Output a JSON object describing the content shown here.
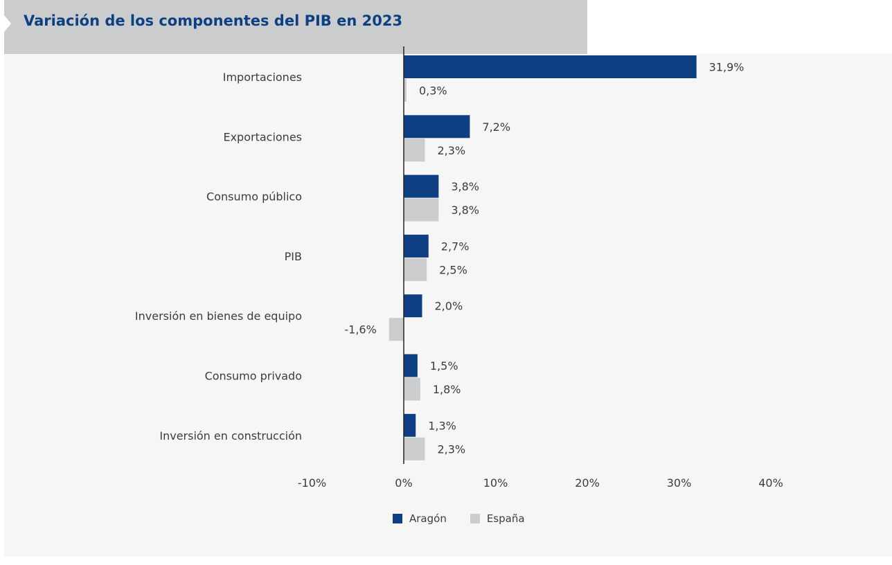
{
  "chart_data": {
    "type": "bar",
    "orientation": "horizontal",
    "title": "Variación de los componentes del PIB en 2023",
    "categories": [
      "Importaciones",
      "Exportaciones",
      "Consumo público",
      "PIB",
      "Inversión en bienes de equipo",
      "Consumo privado",
      "Inversión en construcción"
    ],
    "series": [
      {
        "name": "Aragón",
        "color": "#0e3f82",
        "values": [
          31.9,
          7.2,
          3.8,
          2.7,
          2.0,
          1.5,
          1.3
        ],
        "labels": [
          "31,9%",
          "7,2%",
          "3,8%",
          "2,7%",
          "2,0%",
          "1,5%",
          "1,3%"
        ]
      },
      {
        "name": "España",
        "color": "#cbcccd",
        "values": [
          0.3,
          2.3,
          3.8,
          2.5,
          -1.6,
          1.8,
          2.3
        ],
        "labels": [
          "0,3%",
          "2,3%",
          "3,8%",
          "2,5%",
          "-1,6%",
          "1,8%",
          "2,3%"
        ]
      }
    ],
    "xlim": [
      -10,
      40
    ],
    "xticks": [
      -10,
      0,
      10,
      20,
      30,
      40
    ],
    "xtick_labels": [
      "-10%",
      "0%",
      "10%",
      "20%",
      "30%",
      "40%"
    ],
    "grid": false,
    "legend_position": "bottom"
  }
}
